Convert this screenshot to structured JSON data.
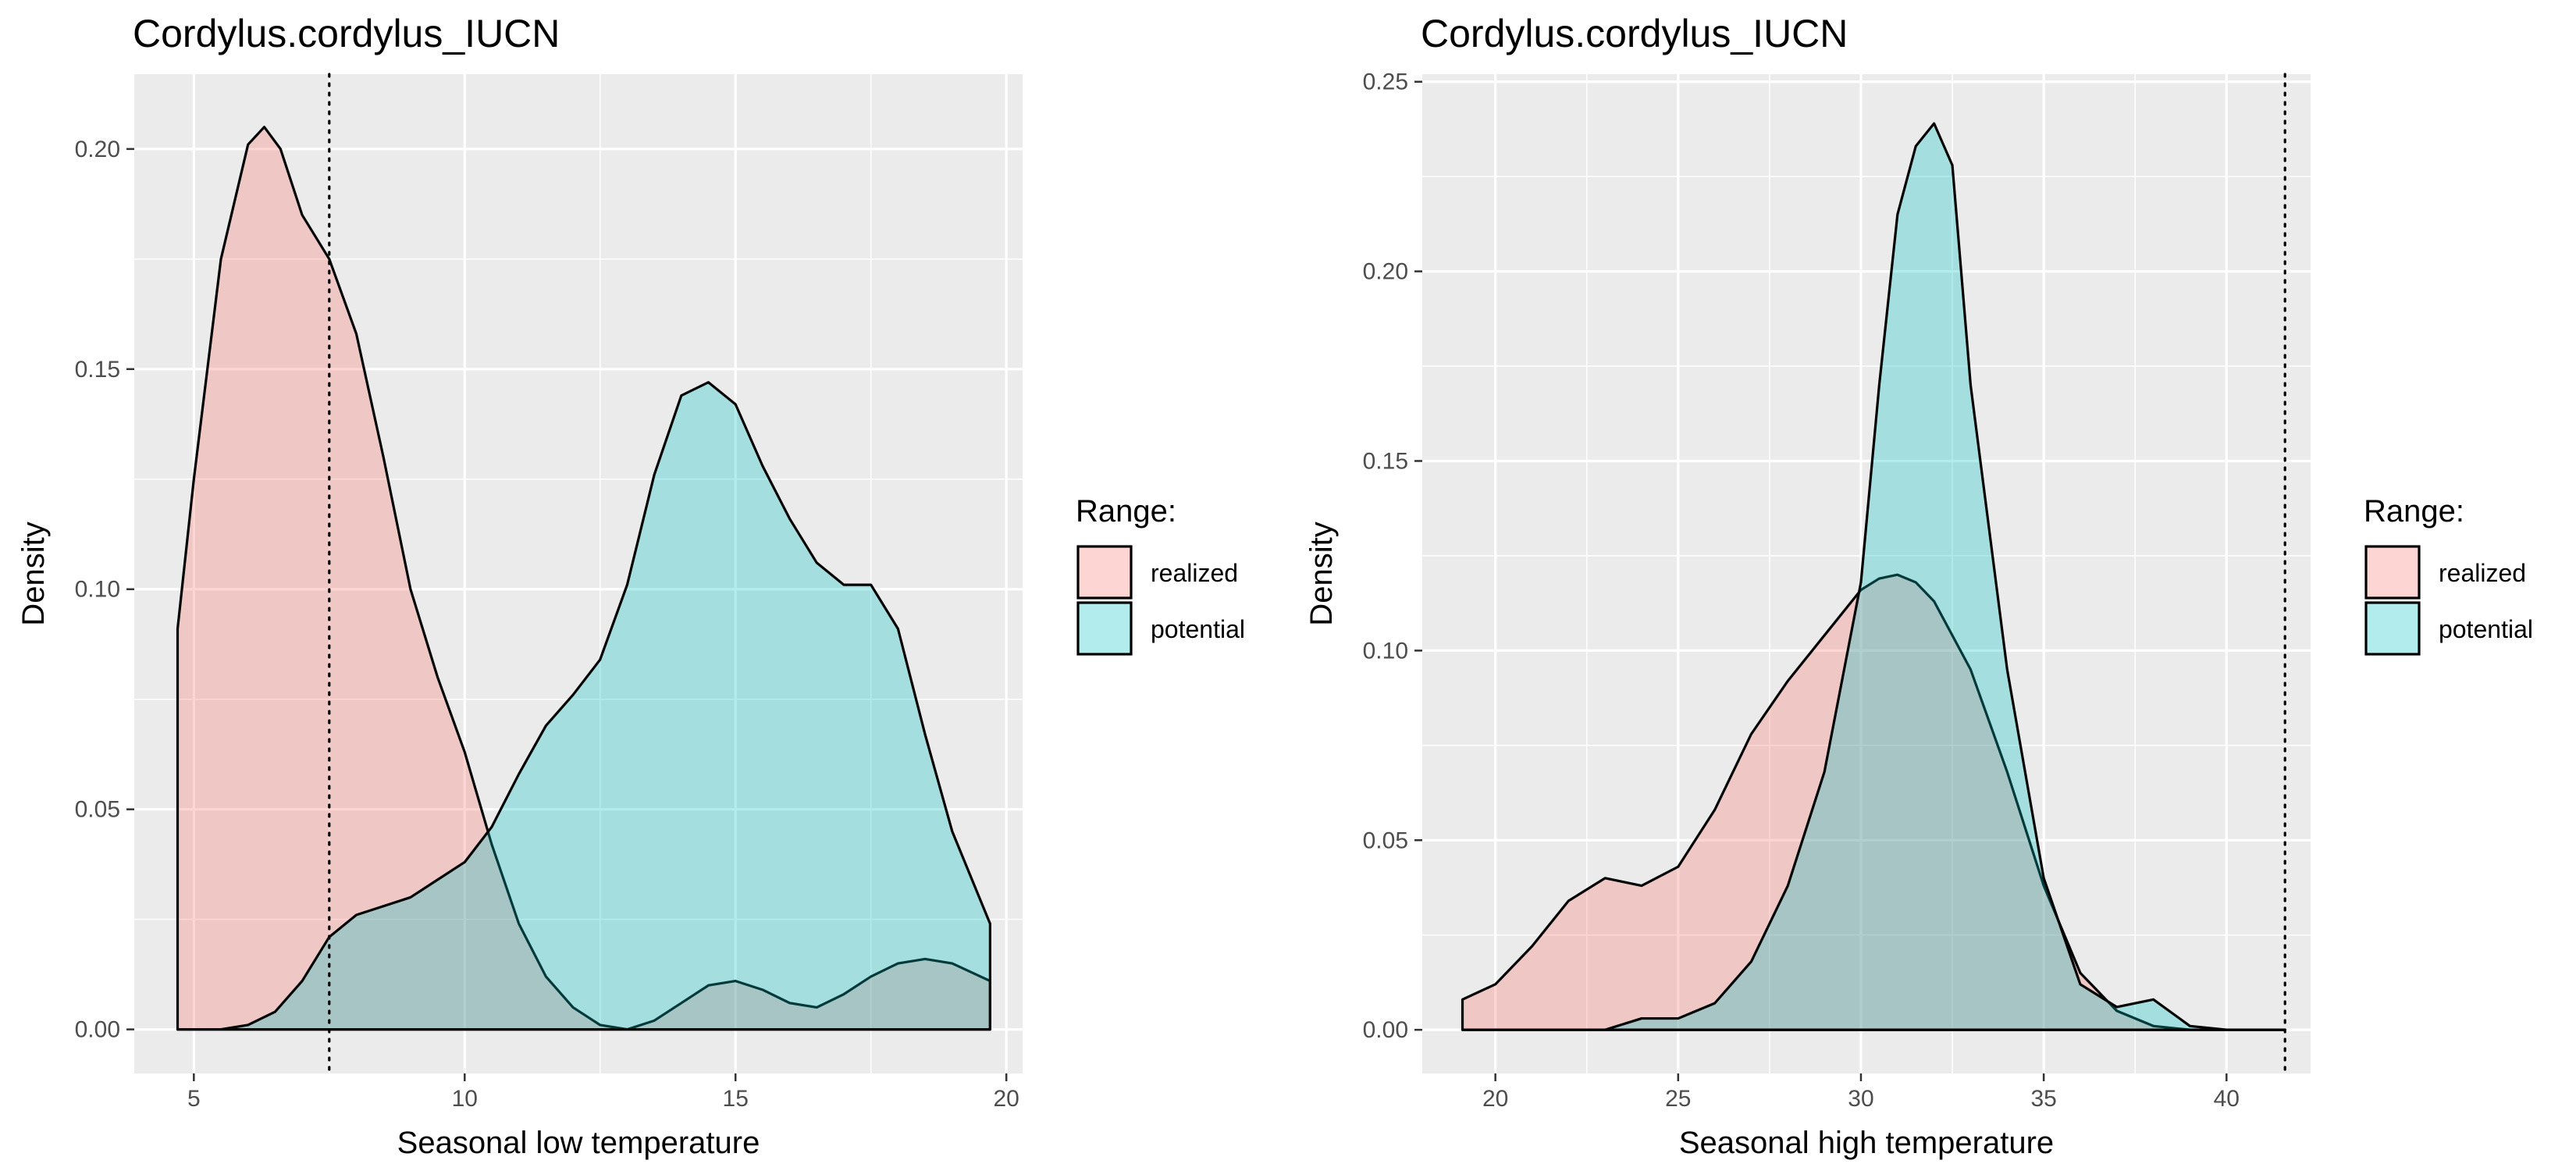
{
  "chart_data": [
    {
      "type": "area",
      "title": "Cordylus.cordylus_IUCN",
      "xlabel": "Seasonal low temperature",
      "ylabel": "Density",
      "xlim": [
        3.9,
        20.3
      ],
      "ylim": [
        -0.01,
        0.217
      ],
      "x_ticks": [
        5,
        10,
        15,
        20
      ],
      "x_tick_labels": [
        "5",
        "10",
        "15",
        "20"
      ],
      "y_ticks": [
        0,
        0.05,
        0.1,
        0.15,
        0.2
      ],
      "y_tick_labels": [
        "0.00",
        "0.05",
        "0.10",
        "0.15",
        "0.20"
      ],
      "vline": 7.5,
      "grid": true,
      "legend": {
        "title": "Range:",
        "position": "right"
      },
      "series": [
        {
          "name": "realized",
          "color": "#F8766D",
          "x": [
            4.7,
            5.0,
            5.5,
            6.0,
            6.3,
            6.6,
            7.0,
            7.5,
            8.0,
            8.5,
            9.0,
            9.5,
            10.0,
            10.5,
            11.0,
            11.5,
            12.0,
            12.5,
            13.0,
            13.5,
            14.0,
            14.5,
            15.0,
            15.5,
            16.0,
            16.5,
            17.0,
            17.5,
            18.0,
            18.5,
            19.0,
            19.7
          ],
          "y": [
            0.091,
            0.125,
            0.175,
            0.201,
            0.205,
            0.2,
            0.185,
            0.175,
            0.158,
            0.13,
            0.1,
            0.08,
            0.063,
            0.042,
            0.024,
            0.012,
            0.005,
            0.001,
            0.0,
            0.002,
            0.006,
            0.01,
            0.011,
            0.009,
            0.006,
            0.005,
            0.008,
            0.012,
            0.015,
            0.016,
            0.015,
            0.011
          ]
        },
        {
          "name": "potential",
          "color": "#00BFC4",
          "x": [
            4.7,
            5.5,
            6.0,
            6.5,
            7.0,
            7.5,
            8.0,
            8.5,
            9.0,
            9.5,
            10.0,
            10.5,
            11.0,
            11.5,
            12.0,
            12.5,
            13.0,
            13.5,
            14.0,
            14.5,
            15.0,
            15.5,
            16.0,
            16.5,
            17.0,
            17.5,
            18.0,
            18.5,
            19.0,
            19.7
          ],
          "y": [
            0.0,
            0.0,
            0.001,
            0.004,
            0.011,
            0.021,
            0.026,
            0.028,
            0.03,
            0.034,
            0.038,
            0.046,
            0.058,
            0.069,
            0.076,
            0.084,
            0.101,
            0.126,
            0.144,
            0.147,
            0.142,
            0.128,
            0.116,
            0.106,
            0.101,
            0.101,
            0.091,
            0.067,
            0.045,
            0.024
          ]
        }
      ]
    },
    {
      "type": "area",
      "title": "Cordylus.cordylus_IUCN",
      "xlabel": "Seasonal high temperature",
      "ylabel": "Density",
      "xlim": [
        18.0,
        42.3
      ],
      "ylim": [
        -0.0115,
        0.252
      ],
      "x_ticks": [
        20,
        25,
        30,
        35,
        40
      ],
      "x_tick_labels": [
        "20",
        "25",
        "30",
        "35",
        "40"
      ],
      "y_ticks": [
        0,
        0.05,
        0.1,
        0.15,
        0.2,
        0.25
      ],
      "y_tick_labels": [
        "0.00",
        "0.05",
        "0.10",
        "0.15",
        "0.20",
        "0.25"
      ],
      "vline": 41.6,
      "grid": true,
      "legend": {
        "title": "Range:",
        "position": "right"
      },
      "series": [
        {
          "name": "realized",
          "color": "#F8766D",
          "x": [
            19.1,
            20.0,
            21.0,
            22.0,
            23.0,
            24.0,
            25.0,
            26.0,
            27.0,
            28.0,
            29.0,
            30.0,
            30.5,
            31.0,
            31.5,
            32.0,
            33.0,
            34.0,
            35.0,
            36.0,
            37.0,
            38.0,
            39.0,
            40.0,
            41.6
          ],
          "y": [
            0.008,
            0.012,
            0.022,
            0.034,
            0.04,
            0.038,
            0.043,
            0.058,
            0.078,
            0.092,
            0.104,
            0.116,
            0.119,
            0.12,
            0.118,
            0.113,
            0.095,
            0.068,
            0.038,
            0.015,
            0.005,
            0.001,
            0.0,
            0.0,
            0.0
          ]
        },
        {
          "name": "potential",
          "color": "#00BFC4",
          "x": [
            19.1,
            22.0,
            23.0,
            24.0,
            25.0,
            26.0,
            27.0,
            28.0,
            29.0,
            30.0,
            30.5,
            31.0,
            31.5,
            32.0,
            32.5,
            33.0,
            34.0,
            35.0,
            36.0,
            37.0,
            38.0,
            39.0,
            40.0,
            41.6
          ],
          "y": [
            0.0,
            0.0,
            0.0,
            0.003,
            0.003,
            0.007,
            0.018,
            0.038,
            0.068,
            0.118,
            0.17,
            0.215,
            0.233,
            0.239,
            0.228,
            0.17,
            0.095,
            0.04,
            0.012,
            0.006,
            0.008,
            0.001,
            0.0,
            0.0
          ]
        }
      ]
    }
  ]
}
